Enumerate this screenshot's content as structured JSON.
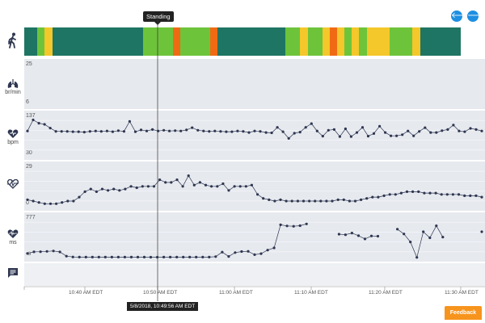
{
  "navigation": {
    "back_label": "🡐",
    "forward_label": "🡒"
  },
  "activity": {
    "tooltip": "Standing",
    "segments": [
      {
        "w": 16,
        "c": "#1e7563"
      },
      {
        "w": 9,
        "c": "#6dc43a"
      },
      {
        "w": 10,
        "c": "#f4c72a"
      },
      {
        "w": 112,
        "c": "#1e7563"
      },
      {
        "w": 37,
        "c": "#6dc43a"
      },
      {
        "w": 9,
        "c": "#f06a14"
      },
      {
        "w": 37,
        "c": "#6dc43a"
      },
      {
        "w": 9,
        "c": "#f06a14"
      },
      {
        "w": 84,
        "c": "#1e7563"
      },
      {
        "w": 18,
        "c": "#6dc43a"
      },
      {
        "w": 10,
        "c": "#f4c72a"
      },
      {
        "w": 18,
        "c": "#6dc43a"
      },
      {
        "w": 9,
        "c": "#f4c72a"
      },
      {
        "w": 9,
        "c": "#f06a14"
      },
      {
        "w": 9,
        "c": "#f4c72a"
      },
      {
        "w": 9,
        "c": "#6dc43a"
      },
      {
        "w": 9,
        "c": "#f4c72a"
      },
      {
        "w": 10,
        "c": "#6dc43a"
      },
      {
        "w": 28,
        "c": "#f4c72a"
      },
      {
        "w": 28,
        "c": "#6dc43a"
      },
      {
        "w": 10,
        "c": "#f4c72a"
      },
      {
        "w": 50,
        "c": "#1e7563"
      }
    ]
  },
  "respiration": {
    "unit": "br/min",
    "max": "25",
    "min": "6"
  },
  "heart_rate": {
    "unit": "bpm",
    "max": "137",
    "min": "30",
    "values": [
      95,
      125,
      116,
      113,
      103,
      94,
      94,
      94,
      93,
      93,
      92,
      94,
      95,
      94,
      95,
      93,
      96,
      94,
      121,
      93,
      98,
      95,
      99,
      95,
      97,
      95,
      96,
      95,
      98,
      104,
      97,
      95,
      94,
      95,
      94,
      93,
      93,
      95,
      94,
      91,
      95,
      94,
      91,
      90,
      105,
      93,
      75,
      89,
      92,
      105,
      115,
      95,
      81,
      97,
      99,
      80,
      101,
      80,
      91,
      105,
      81,
      88,
      108,
      91,
      82,
      82,
      85,
      95,
      82,
      94,
      104,
      91,
      91,
      96,
      99,
      111,
      95,
      93,
      102,
      99,
      95
    ]
  },
  "hrv": {
    "max": "29",
    "min": "0",
    "values": [
      4,
      3,
      2,
      1,
      1,
      1,
      2,
      3,
      3,
      6,
      10,
      12,
      10,
      12,
      11,
      12,
      11,
      12,
      14,
      13,
      14,
      14,
      14,
      19,
      17,
      17,
      19,
      14,
      22,
      15,
      17,
      15,
      14,
      14,
      16,
      11,
      14,
      14,
      14,
      15,
      8,
      5,
      4,
      3,
      4,
      3,
      3,
      3,
      3,
      3,
      3,
      3,
      3,
      3,
      4,
      4,
      3,
      3,
      4,
      5,
      6,
      6,
      7,
      8,
      8,
      9,
      10,
      10,
      10,
      9,
      9,
      9,
      8,
      8,
      8,
      8,
      7,
      7,
      7,
      6
    ]
  },
  "rr_interval": {
    "unit": "ms",
    "max": "777",
    "min": "-8",
    "values": [
      72,
      103,
      107,
      113,
      121,
      102,
      20,
      5,
      2,
      2,
      2,
      2,
      2,
      1,
      2,
      2,
      2,
      1,
      2,
      0,
      0,
      1,
      1,
      1,
      1,
      1,
      1,
      2,
      2,
      11,
      98,
      14,
      89,
      110,
      115,
      49,
      69,
      138,
      180,
      630,
      608,
      601,
      612,
      647,
      null,
      null,
      null,
      null,
      448,
      437,
      469,
      417,
      354,
      412,
      408,
      null,
      null,
      545,
      452,
      296,
      -5,
      495,
      377,
      611,
      390,
      null,
      null,
      null,
      null,
      null,
      495
    ]
  },
  "timeline": {
    "labels": [
      "10:40 AM EDT",
      "10:50 AM EDT",
      "11:00 AM EDT",
      "11:10 AM EDT",
      "11:20 AM EDT",
      "11:30 AM EDT"
    ],
    "cursor": "5/8/2018, 10:49:56 AM EDT"
  },
  "feedback_label": "Feedback",
  "colors": {
    "panel": "#e6e9ee",
    "series": "#2e3650",
    "accent": "#1e8fe1",
    "feedback": "#f7941d"
  }
}
